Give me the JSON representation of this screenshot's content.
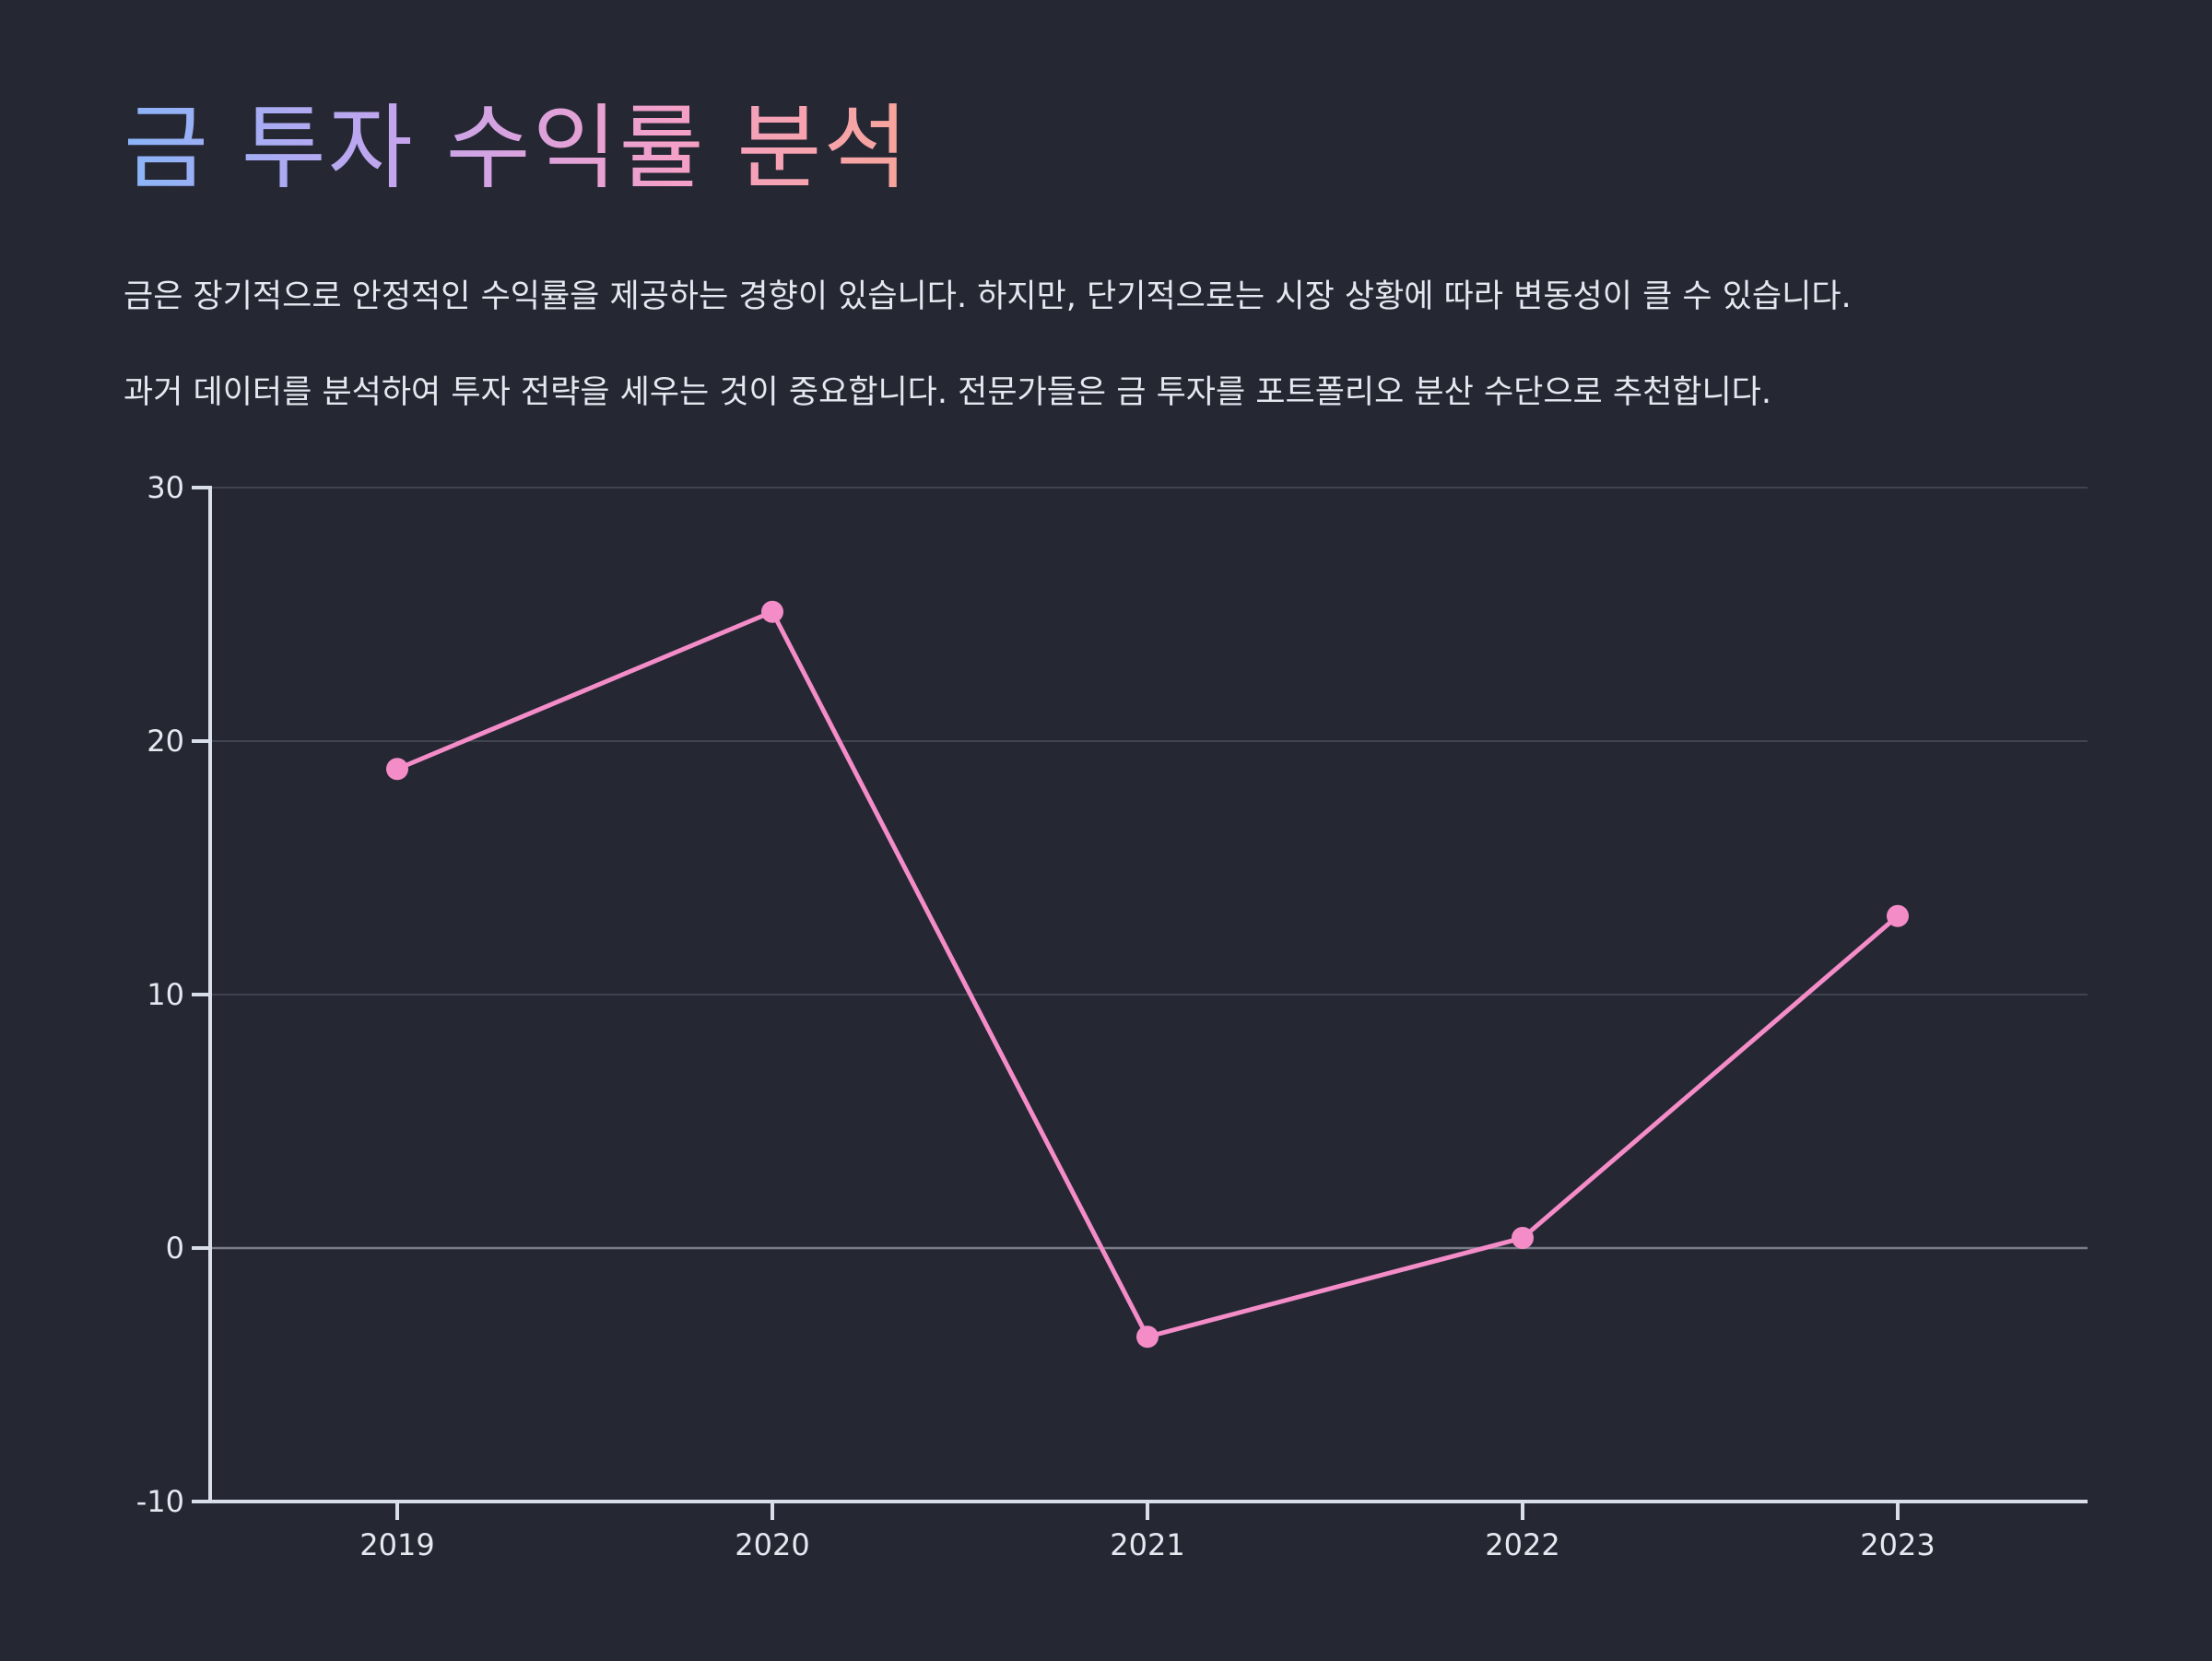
{
  "title": "금 투자 수익률 분석",
  "paragraphs": [
    "금은 장기적으로 안정적인 수익률을 제공하는 경향이 있습니다. 하지만, 단기적으로는 시장 상황에 따라 변동성이 클 수 있습니다.",
    "과거 데이터를 분석하여 투자 전략을 세우는 것이 중요합니다. 전문가들은 금 투자를 포트폴리오 분산 수단으로 추천합니다."
  ],
  "colors": {
    "background": "#252733",
    "line": "#f48cc8",
    "axis": "#d8deea",
    "grid": "#4a4d5a",
    "zero_line": "#7b7e8a",
    "text": "#e6e8f0"
  },
  "chart_data": {
    "type": "line",
    "x": [
      "2019",
      "2020",
      "2021",
      "2022",
      "2023"
    ],
    "series": [
      {
        "values": [
          18.9,
          25.1,
          -3.5,
          0.4,
          13.1
        ]
      }
    ],
    "y_ticks": [
      30,
      20,
      10,
      0,
      -10
    ],
    "ylim": [
      -10,
      30
    ],
    "title": "",
    "xlabel": "",
    "ylabel": "",
    "grid": "horizontal",
    "legend": "none"
  }
}
